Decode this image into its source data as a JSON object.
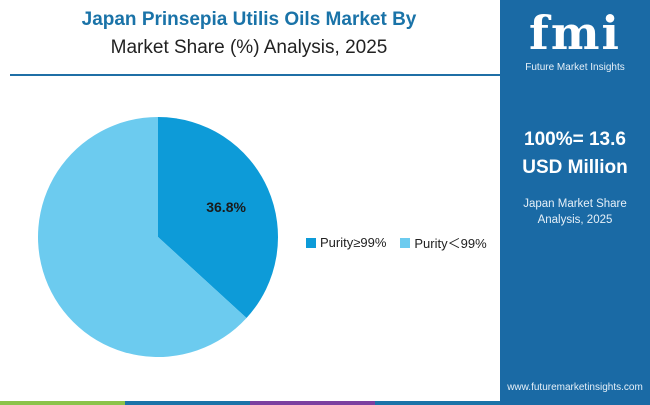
{
  "title": {
    "line1": "Japan Prinsepia Utilis Oils Market By",
    "line2": "Market Share (%) Analysis, 2025"
  },
  "chart_data": {
    "type": "pie",
    "categories": [
      "Purity≥99%",
      "Purity＜99%"
    ],
    "values": [
      36.8,
      63.2
    ],
    "data_labels": [
      "36.8%",
      ""
    ],
    "colors": [
      "#0d9bd8",
      "#6ccbef"
    ],
    "legend": "right"
  },
  "panel": {
    "logo_text": "fmi",
    "logo_sub": "Future Market Insights",
    "headline_line1": "100%= 13.6",
    "headline_line2": "USD Million",
    "sub_line1": "Japan Market Share",
    "sub_line2": "Analysis, 2025",
    "url": "www.futuremarketinsights.com",
    "background": "#1a6aa5"
  },
  "bottom_bar_colors": [
    "#8bc34a",
    "#1a73a8",
    "#7b3fa0",
    "#1a73a8"
  ]
}
